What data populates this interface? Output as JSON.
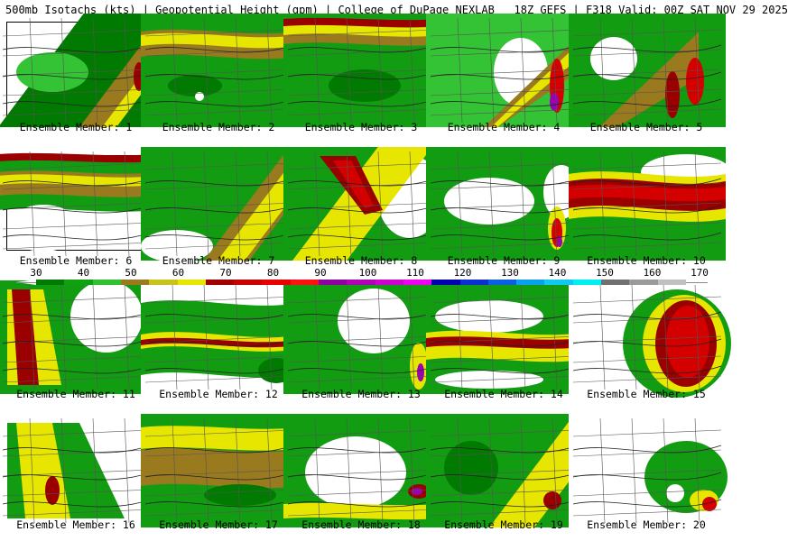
{
  "header": {
    "title": "500mb Isotachs (kts) | Geopotential Height (gpm) | College of DuPage NEXLAB   18Z GEFS | F318 Valid: 00Z SAT NOV 29 2025"
  },
  "colorbar": {
    "labels": [
      "30",
      "40",
      "50",
      "60",
      "70",
      "80",
      "90",
      "100",
      "110",
      "120",
      "130",
      "140",
      "150",
      "160",
      "170"
    ],
    "colors": [
      "#007a00",
      "#10a010",
      "#30c030",
      "#9a7a1e",
      "#c8c21a",
      "#e6e600",
      "#a00000",
      "#c80000",
      "#e60000",
      "#ff1010",
      "#9000a0",
      "#b000b8",
      "#d000d0",
      "#f000f0",
      "#0000b0",
      "#0a30d0",
      "#0a60e0",
      "#0aa0f0",
      "#10c8f0",
      "#00f0f0",
      "#707070",
      "#9a9a9a",
      "#c0c0c0"
    ]
  },
  "members": [
    {
      "label": "Ensemble Member: 1"
    },
    {
      "label": "Ensemble Member: 2"
    },
    {
      "label": "Ensemble Member: 3"
    },
    {
      "label": "Ensemble Member: 4"
    },
    {
      "label": "Ensemble Member: 5"
    },
    {
      "label": "Ensemble Member: 6"
    },
    {
      "label": "Ensemble Member: 7"
    },
    {
      "label": "Ensemble Member: 8"
    },
    {
      "label": "Ensemble Member: 9"
    },
    {
      "label": "Ensemble Member: 10"
    },
    {
      "label": "Ensemble Member: 11"
    },
    {
      "label": "Ensemble Member: 12"
    },
    {
      "label": "Ensemble Member: 13"
    },
    {
      "label": "Ensemble Member: 14"
    },
    {
      "label": "Ensemble Member: 15"
    },
    {
      "label": "Ensemble Member: 16"
    },
    {
      "label": "Ensemble Member: 17"
    },
    {
      "label": "Ensemble Member: 18"
    },
    {
      "label": "Ensemble Member: 19"
    },
    {
      "label": "Ensemble Member: 20"
    }
  ]
}
